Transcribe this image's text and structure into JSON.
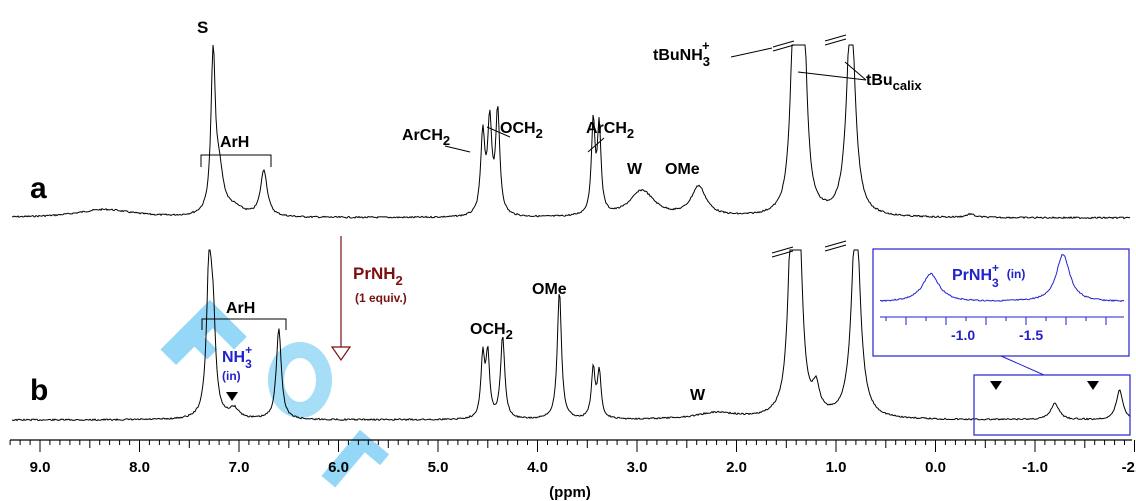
{
  "chart_data": {
    "type": "line",
    "xlabel": "(ppm)",
    "x_axis": {
      "reversed": true,
      "range_ppm": [
        9.3,
        -2.2
      ],
      "ticks": [
        "9.0",
        "8.0",
        "7.0",
        "6.0",
        "5.0",
        "4.0",
        "3.0",
        "2.0",
        "1.0",
        "0.0",
        "-1.0",
        "-2.0"
      ]
    },
    "series": [
      {
        "name": "a",
        "peaks": [
          {
            "ppm": 8.35,
            "height": 0.05,
            "width": 0.35,
            "label": ""
          },
          {
            "ppm": 7.26,
            "height": 0.95,
            "width": 0.025,
            "label": "S"
          },
          {
            "ppm": 7.2,
            "height": 0.25,
            "width": 0.05,
            "label": ""
          },
          {
            "ppm": 7.05,
            "height": 0.05,
            "width": 0.12,
            "label": ""
          },
          {
            "ppm": 6.75,
            "height": 0.28,
            "width": 0.04,
            "label": ""
          },
          {
            "ppm": 4.55,
            "height": 0.48,
            "width": 0.025,
            "label": ""
          },
          {
            "ppm": 4.48,
            "height": 0.55,
            "width": 0.025,
            "label": ""
          },
          {
            "ppm": 4.4,
            "height": 0.62,
            "width": 0.025,
            "label": ""
          },
          {
            "ppm": 3.44,
            "height": 0.55,
            "width": 0.022,
            "label": ""
          },
          {
            "ppm": 3.38,
            "height": 0.52,
            "width": 0.022,
            "label": ""
          },
          {
            "ppm": 2.95,
            "height": 0.16,
            "width": 0.15,
            "label": "W"
          },
          {
            "ppm": 2.38,
            "height": 0.18,
            "width": 0.09,
            "label": "OMe"
          },
          {
            "ppm": 1.42,
            "height": 1.25,
            "width": 0.04,
            "label": ""
          },
          {
            "ppm": 1.33,
            "height": 1.25,
            "width": 0.04,
            "label": ""
          },
          {
            "ppm": 0.85,
            "height": 1.3,
            "width": 0.05,
            "label": ""
          },
          {
            "ppm": -0.35,
            "height": 0.02,
            "width": 0.05,
            "label": ""
          }
        ]
      },
      {
        "name": "b",
        "peaks": [
          {
            "ppm": 7.3,
            "height": 0.9,
            "width": 0.03,
            "label": ""
          },
          {
            "ppm": 7.26,
            "height": 0.5,
            "width": 0.03,
            "label": ""
          },
          {
            "ppm": 7.05,
            "height": 0.06,
            "width": 0.06,
            "label": ""
          },
          {
            "ppm": 6.6,
            "height": 0.55,
            "width": 0.03,
            "label": ""
          },
          {
            "ppm": 4.55,
            "height": 0.37,
            "width": 0.022,
            "label": ""
          },
          {
            "ppm": 4.5,
            "height": 0.38,
            "width": 0.022,
            "label": ""
          },
          {
            "ppm": 4.35,
            "height": 0.5,
            "width": 0.025,
            "label": "OCH2"
          },
          {
            "ppm": 3.78,
            "height": 0.78,
            "width": 0.025,
            "label": "OMe"
          },
          {
            "ppm": 3.44,
            "height": 0.3,
            "width": 0.022,
            "label": ""
          },
          {
            "ppm": 3.38,
            "height": 0.28,
            "width": 0.022,
            "label": ""
          },
          {
            "ppm": 2.2,
            "height": 0.04,
            "width": 0.25,
            "label": "W"
          },
          {
            "ppm": 1.44,
            "height": 1.25,
            "width": 0.04,
            "label": ""
          },
          {
            "ppm": 1.38,
            "height": 1.25,
            "width": 0.04,
            "label": ""
          },
          {
            "ppm": 1.2,
            "height": 0.15,
            "width": 0.04,
            "label": ""
          },
          {
            "ppm": 0.8,
            "height": 1.3,
            "width": 0.05,
            "label": ""
          },
          {
            "ppm": -1.2,
            "height": 0.1,
            "width": 0.05,
            "label": ""
          },
          {
            "ppm": -1.85,
            "height": 0.18,
            "width": 0.04,
            "label": ""
          }
        ]
      }
    ],
    "inset": {
      "title": "PrNH3+ (in)",
      "ticks": [
        "-1.0",
        "-1.5"
      ],
      "color": "#2222cc"
    }
  },
  "labels": {
    "trace_a": "a",
    "trace_b": "b",
    "solvent": "S",
    "arh_a": "ArH",
    "arch2_left": "ArCH",
    "arch2_left_sub": "2",
    "och2_a": "OCH",
    "och2_a_sub": "2",
    "arch2_right": "ArCH",
    "arch2_right_sub": "2",
    "w_a": "W",
    "ome_a": "OMe",
    "tbunh3": "tBuNH",
    "tbunh3_sub": "3",
    "tbunh3_sup": "+",
    "tbu_calix": "tBu",
    "tbu_calix_sub": "calix",
    "arh_b": "ArH",
    "nh3_main": "NH",
    "nh3_sub": "3",
    "nh3_sup": "+",
    "nh3_in": "(in)",
    "och2_b": "OCH",
    "och2_b_sub": "2",
    "ome_b": "OMe",
    "w_b": "W",
    "prnh2": "PrNH",
    "prnh2_sub": "2",
    "equiv": "(1 equiv.)",
    "inset_title": "PrNH",
    "inset_sub": "3",
    "inset_sup": "+",
    "inset_in": "(in)",
    "xlabel": "(ppm)"
  },
  "colors": {
    "trace": "#000000",
    "blue": "#2222cc",
    "arrow": "#7a1010",
    "watermark": "#3fb8f0"
  }
}
